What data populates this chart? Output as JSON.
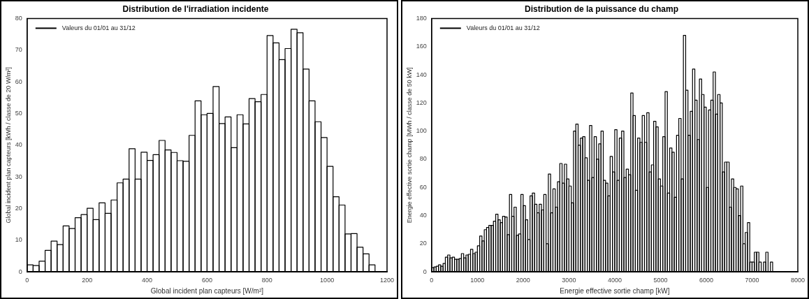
{
  "chart_data": [
    {
      "type": "histogram",
      "title": "Distribution de l'irradiation incidente",
      "xlabel": "Global incident plan capteurs [W/m²]",
      "ylabel": "Global incident plan capteurs [kWh / classe de 20 W/m²]",
      "bins": [
        0,
        20,
        40,
        60,
        80,
        100,
        120,
        140,
        160,
        180,
        200,
        220,
        240,
        260,
        280,
        300,
        320,
        340,
        360,
        380,
        400,
        420,
        440,
        460,
        480,
        500,
        520,
        540,
        560,
        580,
        600,
        620,
        640,
        660,
        680,
        700,
        720,
        740,
        760,
        780,
        800,
        820,
        840,
        860,
        880,
        900,
        920,
        940,
        960,
        980,
        1000,
        1020,
        1040,
        1060,
        1080,
        1100,
        1120,
        1140,
        1160
      ],
      "series": [
        {
          "name": "Valeurs du 01/01 au 31/12",
          "color": "#000000",
          "values": [
            2.2,
            2.0,
            3.4,
            6.8,
            9.7,
            8.6,
            14.5,
            13.7,
            17.1,
            18.1,
            20.1,
            16.5,
            21.8,
            18.5,
            22.7,
            28.1,
            29.3,
            38.9,
            29.3,
            37.8,
            35.2,
            37.0,
            41.5,
            38.5,
            37.7,
            35.1,
            34.9,
            43.1,
            54.0,
            49.6,
            50.0,
            58.5,
            46.8,
            48.9,
            39.2,
            49.6,
            46.7,
            54.7,
            53.7,
            56.0,
            74.6,
            72.3,
            67.0,
            70.5,
            76.6,
            75.5,
            64.0,
            54.0,
            47.4,
            42.4,
            33.3,
            23.7,
            21.1,
            12.0,
            12.1,
            7.8,
            5.7,
            2.2
          ]
        }
      ],
      "xlim": [
        0,
        1200
      ],
      "xticks": [
        0,
        200,
        400,
        600,
        800,
        1000,
        1200
      ],
      "ylim": [
        0,
        80
      ],
      "yticks": [
        0,
        10,
        20,
        30,
        40,
        50,
        60,
        70,
        80
      ],
      "legend": "top left"
    },
    {
      "type": "histogram",
      "title": "Distribution de la puissance du champ",
      "xlabel": "Energie effective sortie champ [kW]",
      "ylabel": "Energie effective sortie champ [MWh / classe de 50 kW]",
      "bins": [
        0,
        50,
        100,
        150,
        200,
        250,
        300,
        350,
        400,
        450,
        500,
        550,
        600,
        650,
        700,
        750,
        800,
        850,
        900,
        950,
        1000,
        1050,
        1100,
        1150,
        1200,
        1250,
        1300,
        1350,
        1400,
        1450,
        1500,
        1550,
        1600,
        1650,
        1700,
        1750,
        1800,
        1850,
        1900,
        1950,
        2000,
        2050,
        2100,
        2150,
        2200,
        2250,
        2300,
        2350,
        2400,
        2450,
        2500,
        2550,
        2600,
        2650,
        2700,
        2750,
        2800,
        2850,
        2900,
        2950,
        3000,
        3050,
        3100,
        3150,
        3200,
        3250,
        3300,
        3350,
        3400,
        3450,
        3500,
        3550,
        3600,
        3650,
        3700,
        3750,
        3800,
        3850,
        3900,
        3950,
        4000,
        4050,
        4100,
        4150,
        4200,
        4250,
        4300,
        4350,
        4400,
        4450,
        4500,
        4550,
        4600,
        4650,
        4700,
        4750,
        4800,
        4850,
        4900,
        4950,
        5000,
        5050,
        5100,
        5150,
        5200,
        5250,
        5300,
        5350,
        5400,
        5450,
        5500,
        5550,
        5600,
        5650,
        5700,
        5750,
        5800,
        5850,
        5900,
        5950,
        6000,
        6050,
        6100,
        6150,
        6200,
        6250,
        6300,
        6350,
        6400,
        6450,
        6500,
        6550,
        6600,
        6650,
        6700,
        6750,
        6800,
        6850,
        6900,
        6950,
        7000,
        7050,
        7100,
        7150,
        7200,
        7250,
        7300,
        7350,
        7400,
        7450
      ],
      "series": [
        {
          "name": "Valeurs du 01/01 au 31/12",
          "color": "#000000",
          "values": [
            3,
            3.5,
            4,
            5,
            4,
            6,
            10.5,
            12,
            10,
            10.5,
            9,
            9,
            9.5,
            13,
            10,
            12,
            12.5,
            16,
            13,
            14,
            18.5,
            25.5,
            22,
            30,
            31.5,
            33,
            33,
            36,
            41,
            37,
            35,
            39.5,
            39,
            26.5,
            55,
            39.5,
            46,
            26,
            27,
            55,
            47,
            37,
            23,
            54,
            56,
            48,
            42,
            48,
            44,
            55,
            20,
            69.5,
            42,
            59,
            46,
            64,
            77,
            63,
            76.5,
            66,
            61,
            49,
            100,
            105,
            90,
            95,
            96,
            81,
            65,
            104,
            67,
            96,
            80,
            91,
            100,
            65,
            63,
            54,
            82,
            71,
            101,
            65,
            95,
            100,
            67,
            73,
            69,
            127,
            111,
            58,
            95,
            92,
            111,
            92,
            113,
            71,
            76,
            107,
            103,
            66,
            61,
            96,
            128,
            56,
            88,
            85,
            53,
            97,
            109,
            66,
            168,
            129,
            97,
            114,
            144,
            122,
            94,
            137,
            126,
            117,
            60,
            115,
            122,
            142,
            112,
            126,
            120,
            71,
            78,
            78,
            46,
            66,
            60,
            59,
            40,
            61,
            20,
            28,
            35,
            7,
            7,
            14,
            14,
            7,
            0,
            7,
            14,
            0,
            7
          ]
        }
      ],
      "xlim": [
        0,
        8000
      ],
      "xticks": [
        0,
        1000,
        2000,
        3000,
        4000,
        5000,
        6000,
        7000,
        8000
      ],
      "ylim": [
        0,
        180
      ],
      "yticks": [
        0,
        20,
        40,
        60,
        80,
        100,
        120,
        140,
        160,
        180
      ],
      "legend": "top left"
    }
  ]
}
